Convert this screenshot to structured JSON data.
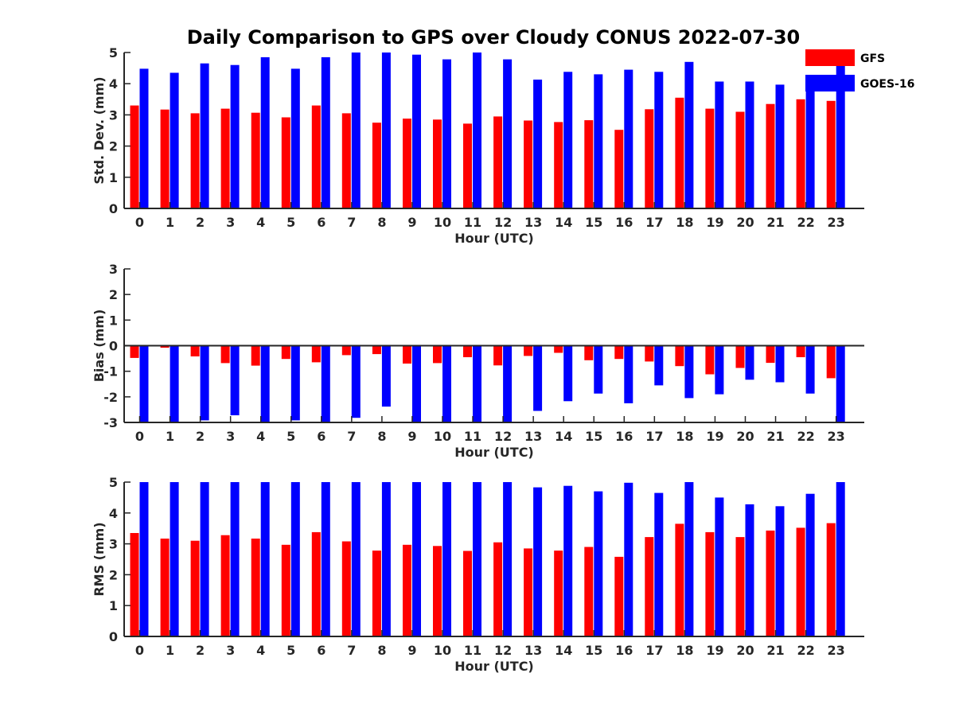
{
  "chart_data": {
    "title": "Daily Comparison to GPS over Cloudy CONUS 2022-07-30",
    "colors": {
      "GFS": "#ff0000",
      "GOES-16": "#0000ff"
    },
    "legend": {
      "placement": "top-right",
      "entries": [
        "GFS",
        "GOES-16"
      ]
    },
    "panels": [
      {
        "type": "bar",
        "ylabel": "Std. Dev. (mm)",
        "xlabel": "Hour (UTC)",
        "ylim": [
          0,
          5
        ],
        "yticks": [
          0,
          1,
          2,
          3,
          4,
          5
        ],
        "categories": [
          "0",
          "1",
          "2",
          "3",
          "4",
          "5",
          "6",
          "7",
          "8",
          "9",
          "10",
          "11",
          "12",
          "13",
          "14",
          "15",
          "16",
          "17",
          "18",
          "19",
          "20",
          "21",
          "22",
          "23"
        ],
        "series": [
          {
            "name": "GFS",
            "values": [
              3.3,
              3.17,
              3.05,
              3.2,
              3.07,
              2.92,
              3.3,
              3.05,
              2.75,
              2.88,
              2.85,
              2.72,
              2.95,
              2.82,
              2.77,
              2.83,
              2.52,
              3.18,
              3.55,
              3.2,
              3.1,
              3.35,
              3.5,
              3.45
            ]
          },
          {
            "name": "GOES-16",
            "values": [
              4.48,
              4.35,
              4.65,
              4.6,
              4.85,
              4.48,
              4.85,
              5.0,
              5.0,
              4.93,
              4.78,
              5.0,
              4.78,
              4.13,
              4.38,
              4.3,
              4.45,
              4.38,
              4.7,
              4.07,
              4.07,
              3.97,
              4.22,
              4.65
            ]
          }
        ]
      },
      {
        "type": "bar",
        "ylabel": "Bias (mm)",
        "xlabel": "Hour (UTC)",
        "ylim": [
          -3,
          3
        ],
        "yticks": [
          -3,
          -2,
          -1,
          0,
          1,
          2,
          3
        ],
        "zero_line": true,
        "categories": [
          "0",
          "1",
          "2",
          "3",
          "4",
          "5",
          "6",
          "7",
          "8",
          "9",
          "10",
          "11",
          "12",
          "13",
          "14",
          "15",
          "16",
          "17",
          "18",
          "19",
          "20",
          "21",
          "22",
          "23"
        ],
        "series": [
          {
            "name": "GFS",
            "values": [
              -0.48,
              -0.08,
              -0.42,
              -0.68,
              -0.78,
              -0.52,
              -0.65,
              -0.37,
              -0.33,
              -0.7,
              -0.68,
              -0.45,
              -0.77,
              -0.4,
              -0.28,
              -0.57,
              -0.52,
              -0.62,
              -0.8,
              -1.12,
              -0.87,
              -0.67,
              -0.45,
              -1.27
            ]
          },
          {
            "name": "GOES-16",
            "values": [
              -3.0,
              -3.0,
              -2.92,
              -2.72,
              -3.0,
              -2.92,
              -3.0,
              -2.82,
              -2.38,
              -3.0,
              -3.0,
              -3.0,
              -3.0,
              -2.55,
              -2.17,
              -1.87,
              -2.25,
              -1.55,
              -2.05,
              -1.9,
              -1.33,
              -1.43,
              -1.87,
              -3.0
            ]
          }
        ]
      },
      {
        "type": "bar",
        "ylabel": "RMS (mm)",
        "xlabel": "Hour (UTC)",
        "ylim": [
          0,
          5
        ],
        "yticks": [
          0,
          1,
          2,
          3,
          4,
          5
        ],
        "categories": [
          "0",
          "1",
          "2",
          "3",
          "4",
          "5",
          "6",
          "7",
          "8",
          "9",
          "10",
          "11",
          "12",
          "13",
          "14",
          "15",
          "16",
          "17",
          "18",
          "19",
          "20",
          "21",
          "22",
          "23"
        ],
        "series": [
          {
            "name": "GFS",
            "values": [
              3.35,
              3.17,
              3.1,
              3.28,
              3.17,
              2.97,
              3.38,
              3.08,
              2.78,
              2.97,
              2.93,
              2.77,
              3.05,
              2.85,
              2.78,
              2.9,
              2.58,
              3.22,
              3.65,
              3.38,
              3.22,
              3.43,
              3.52,
              3.67
            ]
          },
          {
            "name": "GOES-16",
            "values": [
              5.0,
              5.0,
              5.0,
              5.0,
              5.0,
              5.0,
              5.0,
              5.0,
              5.0,
              5.0,
              5.0,
              5.0,
              5.0,
              4.83,
              4.88,
              4.7,
              4.98,
              4.65,
              5.0,
              4.5,
              4.28,
              4.22,
              4.62,
              5.0
            ]
          }
        ]
      }
    ]
  }
}
